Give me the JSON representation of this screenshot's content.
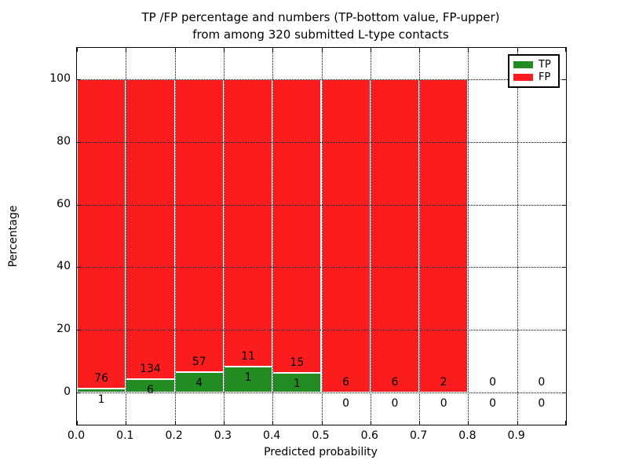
{
  "title": {
    "line1": "TP /FP percentage and numbers (TP-bottom value, FP-upper)",
    "line2": "from among 320 submitted L-type contacts"
  },
  "axes": {
    "xlabel": "Predicted probability",
    "ylabel": "Percentage",
    "x_tick_labels": [
      "0.0",
      "0.1",
      "0.2",
      "0.3",
      "0.4",
      "0.5",
      "0.6",
      "0.7",
      "0.8",
      "0.9"
    ],
    "y_tick_labels": [
      "0",
      "20",
      "40",
      "60",
      "80",
      "100"
    ]
  },
  "legend": {
    "entries": [
      {
        "label": "TP",
        "color": "#228b22",
        "swatch": "tp-swatch"
      },
      {
        "label": "FP",
        "color": "#fb1d1d",
        "swatch": "fp-swatch"
      }
    ],
    "position": "upper right"
  },
  "colors": {
    "tp_green": "#228b22",
    "fp_red": "#fb1d1d",
    "bar_edge": "#ffffff",
    "grid": "#000000"
  },
  "chart_data": {
    "type": "bar",
    "stacked": true,
    "normalized": "each bin scaled to 100% of bin total",
    "title": "TP /FP percentage and numbers (TP-bottom value, FP-upper)\nfrom among 320 submitted L-type contacts",
    "xlabel": "Predicted probability",
    "ylabel": "Percentage",
    "xlim": [
      0.0,
      1.0
    ],
    "ylim": [
      -10,
      110
    ],
    "y_ticks": [
      0,
      20,
      40,
      60,
      80,
      100
    ],
    "x_ticks": [
      0.0,
      0.1,
      0.2,
      0.3,
      0.4,
      0.5,
      0.6,
      0.7,
      0.8,
      0.9
    ],
    "bin_width": 0.1,
    "bin_starts": [
      0.0,
      0.1,
      0.2,
      0.3,
      0.4,
      0.5,
      0.6,
      0.7,
      0.8,
      0.9
    ],
    "total_contacts": 320,
    "grid": "dotted both axes, drawn over bars",
    "legend_position": "upper right",
    "series": [
      {
        "name": "TP",
        "color": "#228b22",
        "counts": [
          1,
          6,
          4,
          1,
          1,
          0,
          0,
          0,
          0,
          0
        ],
        "percent": [
          1.3,
          4.29,
          6.56,
          8.33,
          6.25,
          0,
          0,
          0,
          0,
          0
        ]
      },
      {
        "name": "FP",
        "color": "#fb1d1d",
        "counts": [
          76,
          134,
          57,
          11,
          15,
          6,
          6,
          2,
          0,
          0
        ],
        "percent": [
          98.7,
          95.71,
          93.44,
          91.67,
          93.75,
          100,
          100,
          100,
          0,
          0
        ]
      }
    ]
  }
}
